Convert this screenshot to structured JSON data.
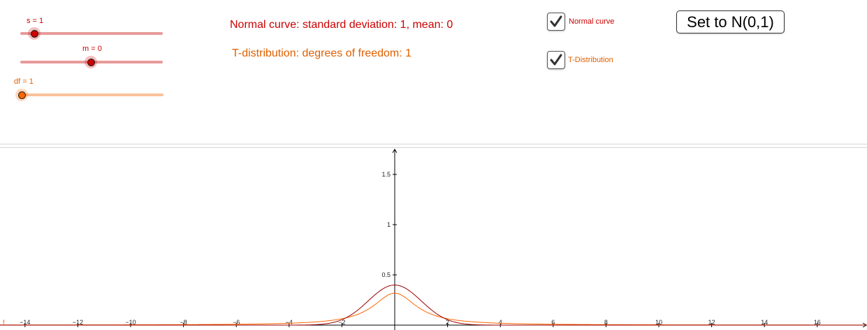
{
  "sliders": {
    "s": {
      "label": "s = 1",
      "value": 1,
      "color": "#cc0000",
      "track_color": "#e89a9a"
    },
    "m": {
      "label": "m = 0",
      "value": 0,
      "color": "#cc0000",
      "track_color": "#e89a9a"
    },
    "df": {
      "label": "df = 1",
      "value": 1,
      "color": "#ff6600",
      "track_color": "#f9c19a",
      "label_color": "#e06000"
    }
  },
  "captions": {
    "normal": "Normal curve: standard deviation: 1, mean: 0",
    "t": "T-distribution: degrees of freedom: 1"
  },
  "checkboxes": {
    "normal": {
      "label": "Normal curve",
      "checked": true,
      "color": "#cc0000"
    },
    "t": {
      "label": "T-Distribution",
      "checked": true,
      "color": "#e06000"
    }
  },
  "button": {
    "label": "Set to N(0,1)"
  },
  "colors": {
    "normal": "#990000",
    "t": "#ff6600",
    "axis": "#000000"
  },
  "chart_data": {
    "type": "line",
    "xlim": [
      -15,
      18
    ],
    "ylim": [
      0,
      1.7
    ],
    "x_ticks": [
      "−14",
      "−12",
      "−10",
      "−8",
      "−6",
      "−4",
      "−2",
      "2",
      "4",
      "6",
      "8",
      "10",
      "12",
      "14",
      "16"
    ],
    "y_ticks": [
      "0.5",
      "1",
      "1.5"
    ],
    "series": [
      {
        "name": "",
        "description_ref": "normal",
        "mean": 0,
        "sd": 1
      },
      {
        "name": "",
        "description_ref": "t",
        "df": 1
      }
    ],
    "axis_label_x_left": "f"
  }
}
